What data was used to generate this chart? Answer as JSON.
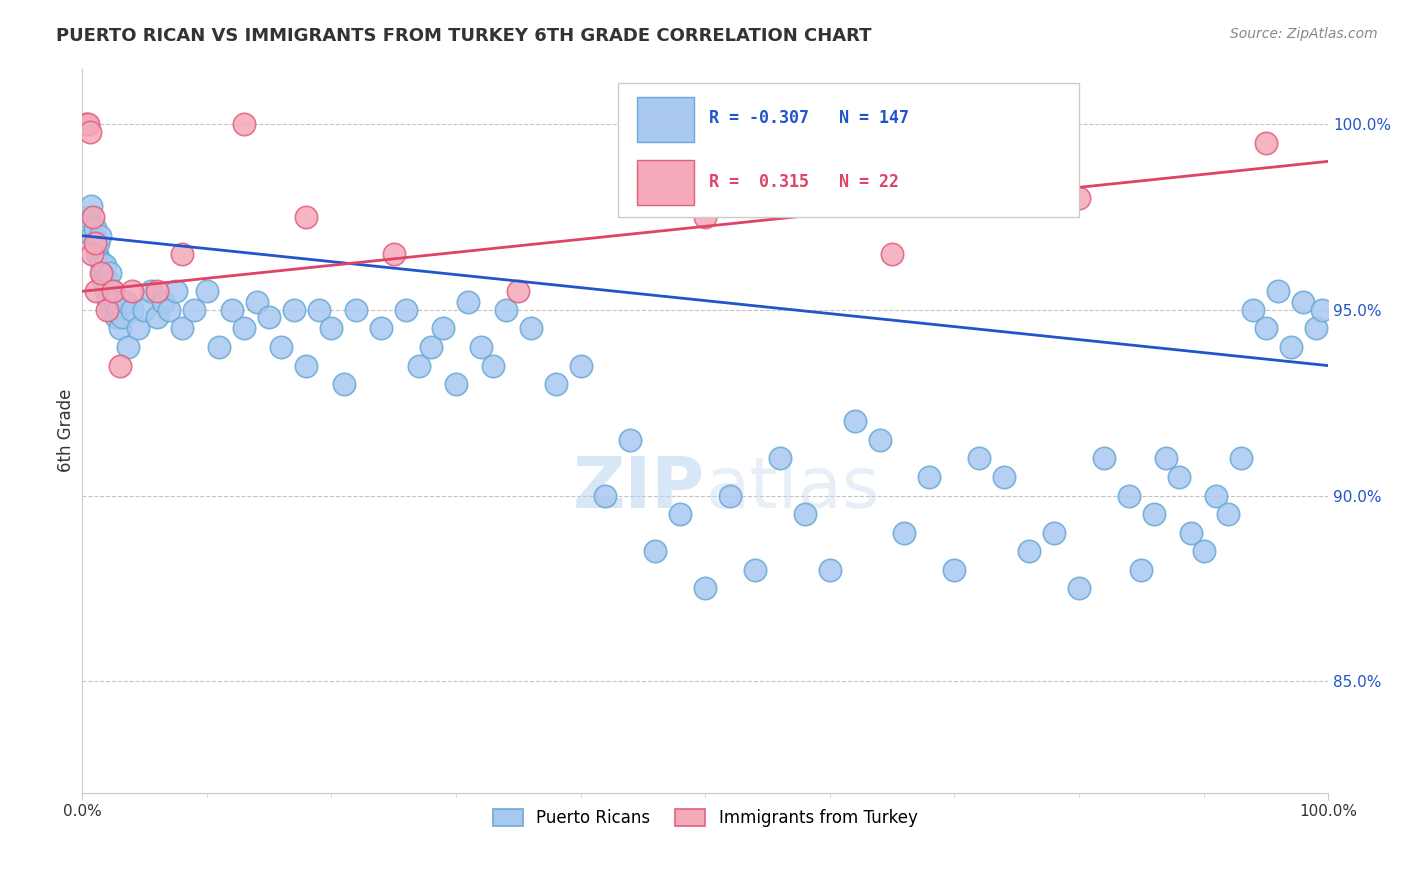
{
  "title": "PUERTO RICAN VS IMMIGRANTS FROM TURKEY 6TH GRADE CORRELATION CHART",
  "source_text": "Source: ZipAtlas.com",
  "ylabel": "6th Grade",
  "x_min": 0.0,
  "x_max": 100.0,
  "y_min": 82.0,
  "y_max": 101.5,
  "yticks": [
    85.0,
    90.0,
    95.0,
    100.0
  ],
  "ytick_labels": [
    "85.0%",
    "90.0%",
    "95.0%",
    "100.0%"
  ],
  "xtick_labels": [
    "0.0%",
    "100.0%"
  ],
  "blue_R": -0.307,
  "blue_N": 147,
  "pink_R": 0.315,
  "pink_N": 22,
  "blue_color": "#a8c8f0",
  "blue_edge": "#6aaad4",
  "pink_color": "#f5a8b8",
  "pink_edge": "#e06080",
  "blue_line_color": "#2255cc",
  "pink_line_color": "#dd4466",
  "watermark_zip": "ZIP",
  "watermark_atlas": "atlas",
  "legend_blue_label": "Puerto Ricans",
  "legend_pink_label": "Immigrants from Turkey",
  "blue_scatter_x": [
    0.5,
    0.7,
    0.8,
    1.0,
    1.2,
    1.3,
    1.4,
    1.5,
    1.6,
    1.7,
    1.8,
    1.9,
    2.0,
    2.1,
    2.2,
    2.3,
    2.5,
    2.6,
    2.7,
    2.9,
    3.0,
    3.2,
    3.5,
    3.7,
    4.0,
    4.5,
    5.0,
    5.5,
    6.0,
    6.5,
    7.0,
    7.5,
    8.0,
    9.0,
    10.0,
    11.0,
    12.0,
    13.0,
    14.0,
    15.0,
    16.0,
    17.0,
    18.0,
    19.0,
    20.0,
    21.0,
    22.0,
    24.0,
    26.0,
    27.0,
    28.0,
    29.0,
    30.0,
    31.0,
    32.0,
    33.0,
    34.0,
    36.0,
    38.0,
    40.0,
    42.0,
    44.0,
    46.0,
    48.0,
    50.0,
    52.0,
    54.0,
    56.0,
    58.0,
    60.0,
    62.0,
    64.0,
    66.0,
    68.0,
    70.0,
    72.0,
    74.0,
    76.0,
    78.0,
    80.0,
    82.0,
    84.0,
    85.0,
    86.0,
    87.0,
    88.0,
    89.0,
    90.0,
    91.0,
    92.0,
    93.0,
    94.0,
    95.0,
    96.0,
    97.0,
    98.0,
    99.0,
    99.5
  ],
  "blue_scatter_y": [
    97.5,
    97.8,
    97.0,
    97.2,
    96.5,
    96.8,
    97.0,
    96.3,
    96.0,
    95.8,
    96.2,
    95.5,
    95.8,
    95.3,
    96.0,
    95.0,
    95.5,
    95.2,
    94.8,
    95.0,
    94.5,
    94.8,
    95.2,
    94.0,
    95.0,
    94.5,
    95.0,
    95.5,
    94.8,
    95.2,
    95.0,
    95.5,
    94.5,
    95.0,
    95.5,
    94.0,
    95.0,
    94.5,
    95.2,
    94.8,
    94.0,
    95.0,
    93.5,
    95.0,
    94.5,
    93.0,
    95.0,
    94.5,
    95.0,
    93.5,
    94.0,
    94.5,
    93.0,
    95.2,
    94.0,
    93.5,
    95.0,
    94.5,
    93.0,
    93.5,
    90.0,
    91.5,
    88.5,
    89.5,
    87.5,
    90.0,
    88.0,
    91.0,
    89.5,
    88.0,
    92.0,
    91.5,
    89.0,
    90.5,
    88.0,
    91.0,
    90.5,
    88.5,
    89.0,
    87.5,
    91.0,
    90.0,
    88.0,
    89.5,
    91.0,
    90.5,
    89.0,
    88.5,
    90.0,
    89.5,
    91.0,
    95.0,
    94.5,
    95.5,
    94.0,
    95.2,
    94.5,
    95.0
  ],
  "pink_scatter_x": [
    0.3,
    0.5,
    0.6,
    0.8,
    0.9,
    1.0,
    1.1,
    1.5,
    2.0,
    2.5,
    3.0,
    4.0,
    6.0,
    8.0,
    13.0,
    18.0,
    25.0,
    35.0,
    50.0,
    65.0,
    80.0,
    95.0
  ],
  "pink_scatter_y": [
    100.0,
    100.0,
    99.8,
    96.5,
    97.5,
    96.8,
    95.5,
    96.0,
    95.0,
    95.5,
    93.5,
    95.5,
    95.5,
    96.5,
    100.0,
    97.5,
    96.5,
    95.5,
    97.5,
    96.5,
    98.0,
    99.5
  ],
  "blue_trend_start_y": 97.0,
  "blue_trend_end_y": 93.5,
  "pink_trend_start_y": 95.5,
  "pink_trend_end_y": 99.0
}
